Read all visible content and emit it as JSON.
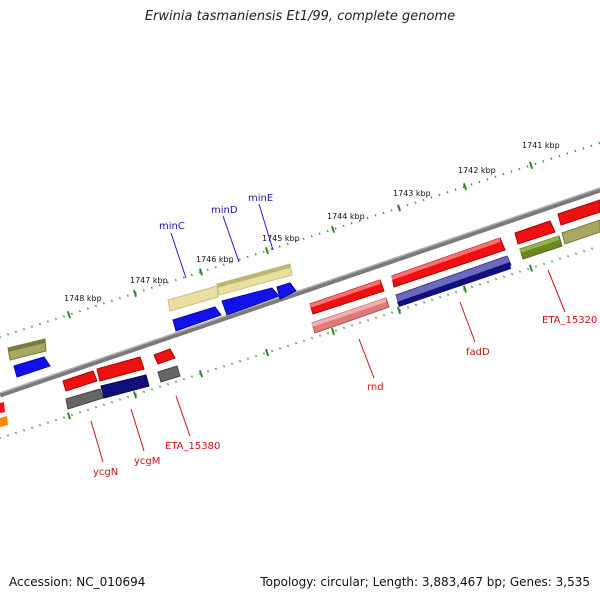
{
  "title": "Erwinia tasmaniensis Et1/99, complete genome",
  "footer": {
    "accession": "Accession: NC_010694",
    "stats": "Topology: circular; Length: 3,883,467 bp; Genes: 3,535"
  },
  "ticks": [
    "1741 kbp",
    "1742 kbp",
    "1743 kbp",
    "1744 kbp",
    "1745 kbp",
    "1746 kbp",
    "1747 kbp",
    "1748 kbp"
  ],
  "gene_labels": {
    "minC": "minC",
    "minD": "minD",
    "minE": "minE",
    "fadD": "fadD",
    "rnd": "rnd",
    "ycgN": "ycgN",
    "ycgM": "ycgM",
    "ETA_15380": "ETA_15380",
    "ETA_15320": "ETA_15320"
  },
  "colors": {
    "red": "#ee1111",
    "pink": "#e07a7a",
    "blue": "#1111ee",
    "navy": "#10107a",
    "slate": "#6a6ac0",
    "khaki": "#e8e0a0",
    "olive": "#a8a860",
    "green": "#6a8a20",
    "grey": "#666666",
    "orange": "#ff8800",
    "backbone": "#808080",
    "tick": "#2a8a2a"
  }
}
